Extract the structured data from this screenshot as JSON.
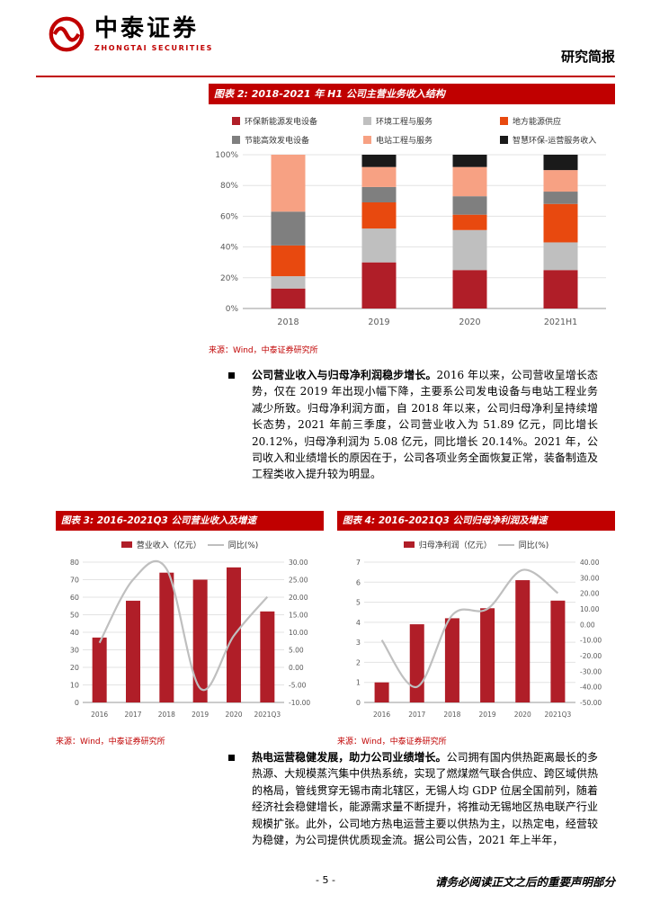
{
  "header": {
    "logo_cn": "中泰证券",
    "logo_en": "ZHONGTAI SECURITIES",
    "report_type": "研究简报"
  },
  "chart_data": [
    {
      "type": "bar",
      "stacked": true,
      "title": "图表 2: 2018-2021 年 H1 公司主营业务收入结构",
      "categories": [
        "2018",
        "2019",
        "2020",
        "2021H1"
      ],
      "y_unit": "%",
      "ylim": [
        0,
        100
      ],
      "legend_position": "top",
      "series": [
        {
          "name": "环保新能源发电设备",
          "color": "#b01e28",
          "values": [
            13,
            30,
            25,
            25
          ]
        },
        {
          "name": "环境工程与服务",
          "color": "#bfbfbf",
          "values": [
            8,
            22,
            26,
            18
          ]
        },
        {
          "name": "地方能源供应",
          "color": "#e8490f",
          "values": [
            20,
            17,
            10,
            25
          ]
        },
        {
          "name": "节能高效发电设备",
          "color": "#7f7f7f",
          "values": [
            22,
            10,
            12,
            8
          ]
        },
        {
          "name": "电站工程与服务",
          "color": "#f7a183",
          "values": [
            37,
            13,
            19,
            14
          ]
        },
        {
          "name": "智慧环保-运营服务收入",
          "color": "#1a1a1a",
          "values": [
            0,
            8,
            8,
            10
          ]
        }
      ]
    },
    {
      "type": "bar",
      "title": "图表 3: 2016-2021Q3 公司营业收入及增速",
      "categories": [
        "2016",
        "2017",
        "2018",
        "2019",
        "2020",
        "2021Q3"
      ],
      "bar": {
        "name": "营业收入（亿元）",
        "color": "#b01e28",
        "values": [
          37,
          58,
          74,
          70,
          77,
          51.89
        ]
      },
      "line": {
        "name": "同比(%)",
        "color": "#bfbfbf",
        "axis": "right",
        "values": [
          7,
          25,
          28,
          -6,
          9,
          20.12
        ]
      },
      "left_axis": {
        "min": 0,
        "max": 80,
        "step": 10
      },
      "right_axis": {
        "min": -10,
        "max": 30,
        "step": 5
      },
      "legend_position": "top"
    },
    {
      "type": "bar",
      "title": "图表 4: 2016-2021Q3 公司归母净利润及增速",
      "categories": [
        "2016",
        "2017",
        "2018",
        "2019",
        "2020",
        "2021Q3"
      ],
      "bar": {
        "name": "归母净利润（亿元）",
        "color": "#b01e28",
        "values": [
          1.0,
          3.9,
          4.2,
          4.7,
          6.1,
          5.08
        ]
      },
      "line": {
        "name": "同比(%)",
        "color": "#bfbfbf",
        "axis": "right",
        "values": [
          -10,
          -40,
          6,
          10,
          35,
          20.14
        ]
      },
      "left_axis": {
        "min": 0,
        "max": 7,
        "step": 1
      },
      "right_axis": {
        "min": -50,
        "max": 40,
        "step": 10
      },
      "legend_position": "top"
    }
  ],
  "figures": {
    "fig2_source": "来源：Wind，中泰证券研究所",
    "fig3_source": "来源：Wind，中泰证券研究所",
    "fig4_source": "来源：Wind，中泰证券研究所"
  },
  "paragraphs": {
    "p1_bold": "公司营业收入与归母净利润稳步增长。",
    "p1_text": "2016 年以来，公司营收呈增长态势，仅在 2019 年出现小幅下降，主要系公司发电设备与电站工程业务减少所致。归母净利润方面，自 2018 年以来，公司归母净利呈持续增长态势，2021 年前三季度，公司营业收入为 51.89 亿元，同比增长 20.12%，归母净利润为 5.08 亿元，同比增长 20.14%。2021 年，公司收入和业绩增长的原因在于，公司各项业务全面恢复正常，装备制造及工程类收入提升较为明显。",
    "p2_bold": "热电运营稳健发展，助力公司业绩增长。",
    "p2_text": "公司拥有国内供热距离最长的多热源、大规模蒸汽集中供热系统，实现了燃煤燃气联合供应、跨区域供热的格局，管线贯穿无锡市南北辖区，无锡人均 GDP 位居全国前列，随着经济社会稳健增长，能源需求量不断提升，将推动无锡地区热电联产行业规模扩张。此外，公司地方热电运营主要以供热为主，以热定电，经营较为稳健，为公司提供优质现金流。据公司公告，2021 年上半年，"
  },
  "footer": {
    "page_number": "- 5 -",
    "disclaimer": "请务必阅读正文之后的重要声明部分"
  }
}
